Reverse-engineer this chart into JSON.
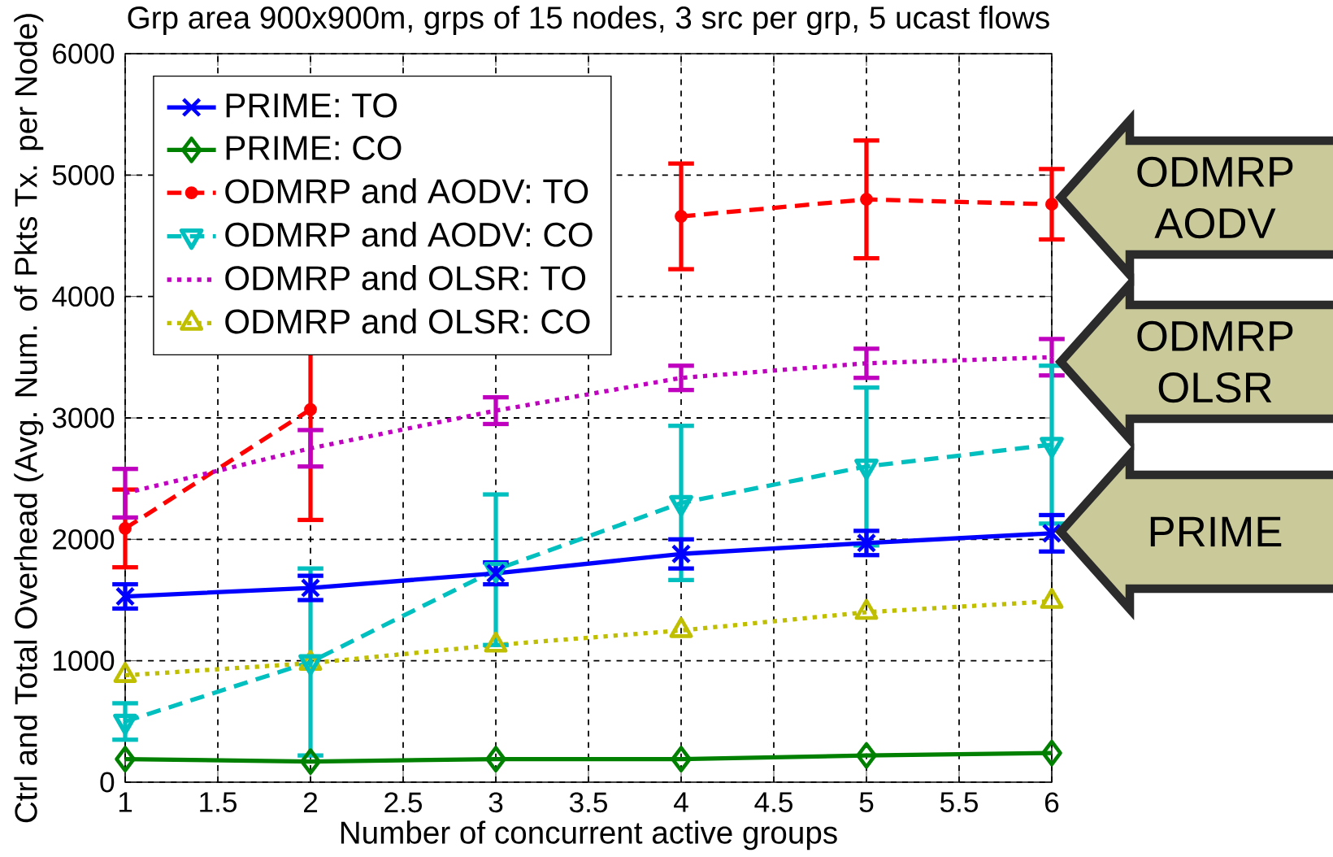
{
  "chart_data": {
    "type": "line",
    "title": "Grp area 900x900m, grps of 15 nodes, 3 src per grp, 5 ucast flows",
    "xlabel": "Number of concurrent active groups",
    "ylabel": "Ctrl and Total Overhead (Avg. Num. of Pkts Tx. per Node)",
    "x": [
      1,
      2,
      3,
      4,
      5,
      6
    ],
    "series": [
      {
        "name": "PRIME: TO",
        "color": "#0000ff",
        "marker": "x",
        "line_style": "solid",
        "values": [
          1530,
          1600,
          1720,
          1880,
          1970,
          2050
        ],
        "errors": [
          100,
          100,
          90,
          120,
          100,
          150
        ]
      },
      {
        "name": "PRIME: CO",
        "color": "#008000",
        "marker": "diamond",
        "line_style": "solid",
        "values": [
          190,
          170,
          190,
          190,
          220,
          240
        ]
      },
      {
        "name": "ODMRP and AODV: TO",
        "color": "#ff0000",
        "marker": "circle",
        "line_style": "dashed",
        "values": [
          2090,
          3070,
          null,
          4660,
          4800,
          4760
        ],
        "errors": [
          320,
          910,
          null,
          435,
          485,
          290
        ]
      },
      {
        "name": "ODMRP and AODV: CO",
        "color": "#00bfbf",
        "marker": "triangle_down",
        "line_style": "dashed",
        "values": [
          500,
          990,
          1750,
          2300,
          2600,
          2780
        ],
        "errors": [
          150,
          770,
          620,
          635,
          650,
          650
        ]
      },
      {
        "name": "ODMRP and OLSR: TO",
        "color": "#bf00bf",
        "marker": "none",
        "line_style": "dotted",
        "values": [
          2380,
          2750,
          3060,
          3330,
          3450,
          3500
        ],
        "errors": [
          200,
          150,
          110,
          100,
          120,
          150
        ]
      },
      {
        "name": "ODMRP and OLSR: CO",
        "color": "#bfbf00",
        "marker": "triangle",
        "line_style": "dotted",
        "values": [
          880,
          980,
          1130,
          1250,
          1400,
          1490
        ]
      }
    ],
    "xlim": [
      1,
      6
    ],
    "ylim": [
      0,
      6000
    ],
    "xticks": [
      1,
      1.5,
      2,
      2.5,
      3,
      3.5,
      4,
      4.5,
      5,
      5.5,
      6
    ],
    "yticks": [
      0,
      1000,
      2000,
      3000,
      4000,
      5000,
      6000
    ],
    "grid": true,
    "legend": "top left",
    "annotations": [
      "ODMRP AODV",
      "ODMRP OLSR",
      "PRIME"
    ]
  }
}
